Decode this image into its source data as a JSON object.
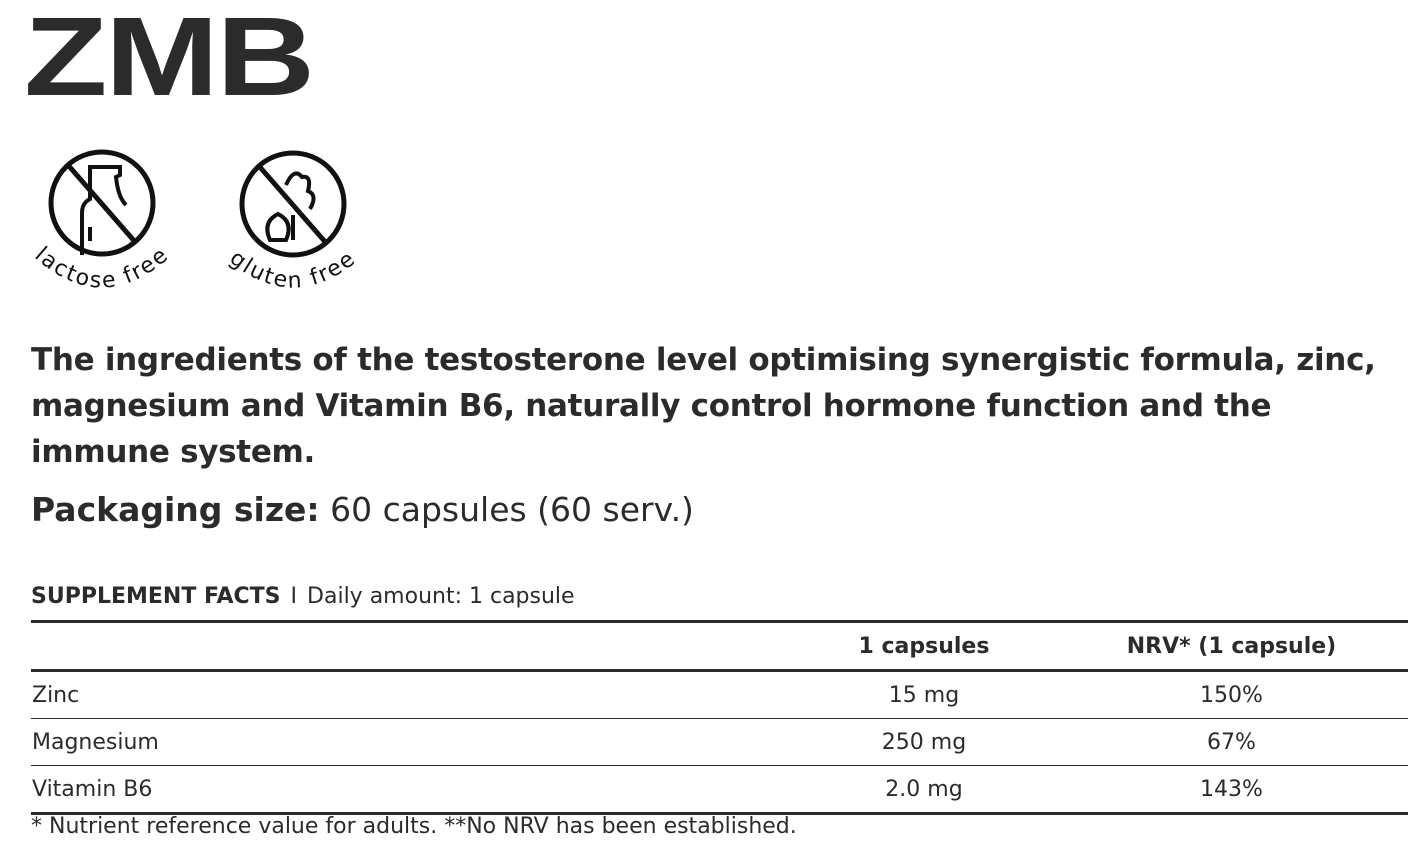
{
  "title": "ZMB",
  "badges": [
    {
      "icon": "no-milk-bottle-icon",
      "label": "lactose free"
    },
    {
      "icon": "no-wheat-icon",
      "label": "gluten free"
    }
  ],
  "description": "The ingredients of the testosterone level optimising synergistic formula, zinc, magnesium and Vitamin B6, naturally control hormone function and the immune system.",
  "packaging": {
    "label": "Packaging size:",
    "value": "60 capsules (60 serv.)"
  },
  "facts": {
    "heading": "SUPPLEMENT FACTS",
    "separator": "I",
    "daily": "Daily amount: 1 capsule",
    "columns": [
      "",
      "1 capsules",
      "NRV* (1 capsule)"
    ],
    "rows": [
      [
        "Zinc",
        "15 mg",
        "150%"
      ],
      [
        "Magnesium",
        "250 mg",
        "67%"
      ],
      [
        "Vitamin B6",
        "2.0 mg",
        "143%"
      ]
    ],
    "footnote": "* Nutrient reference value for adults. **No NRV has been established."
  }
}
